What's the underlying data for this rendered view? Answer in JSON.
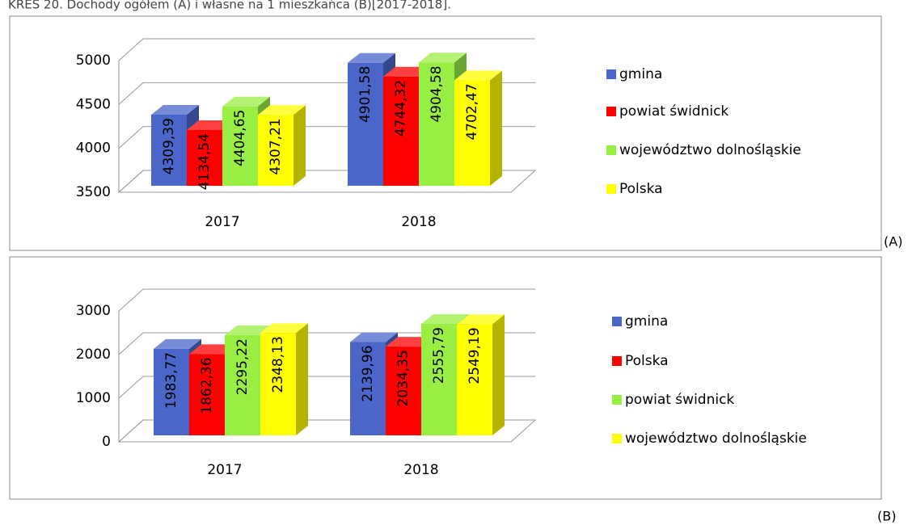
{
  "caption": "KRES 20. Dochody ogółem (A) i własne na 1 mieszkańca (B)[2017-2018].",
  "chart_data": [
    {
      "type": "bar",
      "label": "(A)",
      "categories": [
        "2017",
        "2018"
      ],
      "series": [
        {
          "name": "gmina",
          "color": "#4a66c8",
          "values": [
            4309.39,
            4901.58
          ],
          "value_labels": [
            "4309,39",
            "4901,58"
          ]
        },
        {
          "name": "powiat świdnick",
          "color": "#ff0000",
          "values": [
            4134.54,
            4744.32
          ],
          "value_labels": [
            "4134,54",
            "4744,32"
          ]
        },
        {
          "name": "województwo dolnośląskie",
          "color": "#99ee44",
          "values": [
            4404.65,
            4904.58
          ],
          "value_labels": [
            "4404,65",
            "4904,58"
          ]
        },
        {
          "name": "Polska",
          "color": "#ffff00",
          "values": [
            4307.21,
            4702.47
          ],
          "value_labels": [
            "4307,21",
            "4702,47"
          ]
        }
      ],
      "ylim": [
        3500,
        5000
      ],
      "yticks": [
        3500,
        4000,
        4500,
        5000
      ],
      "grid": true,
      "legend": "right"
    },
    {
      "type": "bar",
      "label": "(B)",
      "categories": [
        "2017",
        "2018"
      ],
      "series": [
        {
          "name": "gmina",
          "color": "#4a66c8",
          "values": [
            1983.77,
            2139.96
          ],
          "value_labels": [
            "1983,77",
            "2139,96"
          ]
        },
        {
          "name": "Polska",
          "color": "#ff0000",
          "values": [
            1862.36,
            2034.35
          ],
          "value_labels": [
            "1862,36",
            "2034,35"
          ]
        },
        {
          "name": "powiat świdnick",
          "color": "#99ee44",
          "values": [
            2295.22,
            2555.79
          ],
          "value_labels": [
            "2295,22",
            "2555,79"
          ]
        },
        {
          "name": "województwo dolnośląskie",
          "color": "#ffff00",
          "values": [
            2348.13,
            2549.19
          ],
          "value_labels": [
            "2348,13",
            "2549,19"
          ]
        }
      ],
      "ylim": [
        0,
        3000
      ],
      "yticks": [
        0,
        1000,
        2000,
        3000
      ],
      "grid": true,
      "legend": "right"
    }
  ]
}
